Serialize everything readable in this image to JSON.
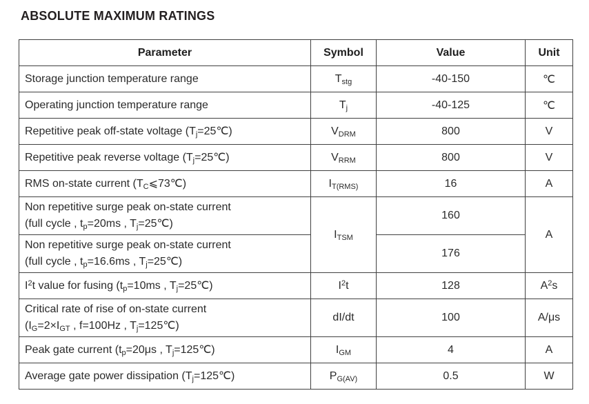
{
  "title": "ABSOLUTE MAXIMUM RATINGS",
  "table": {
    "headers": [
      "Parameter",
      "Symbol",
      "Value",
      "Unit"
    ],
    "rows": [
      {
        "parameter_lines": [
          "Storage junction temperature range"
        ],
        "symbol": "T_{stg}",
        "value": "-40-150",
        "unit": "℃"
      },
      {
        "parameter_lines": [
          "Operating junction temperature range"
        ],
        "symbol": "T_{j}",
        "value": "-40-125",
        "unit": "℃"
      },
      {
        "parameter_lines": [
          "Repetitive peak off-state voltage (T_{j}=25℃)"
        ],
        "symbol": "V_{DRM}",
        "value": "800",
        "unit": "V"
      },
      {
        "parameter_lines": [
          "Repetitive peak reverse voltage (T_{j}=25℃)"
        ],
        "symbol": "V_{RRM}",
        "value": "800",
        "unit": "V"
      },
      {
        "parameter_lines": [
          "RMS on-state current (T_{C}⩽73℃)"
        ],
        "symbol": "I_{T(RMS)}",
        "value": "16",
        "unit": "A"
      },
      {
        "parameter_lines": [
          "Non repetitive surge peak on-state current",
          "(full cycle , t_{p}=20ms , T_{j}=25℃)"
        ],
        "symbol": "I_{TSM}",
        "symbol_rowspan": 2,
        "value": "160",
        "unit": "A",
        "unit_rowspan": 2
      },
      {
        "parameter_lines": [
          "Non repetitive surge peak on-state current",
          "(full cycle , t_{p}=16.6ms , T_{j}=25℃)"
        ],
        "value": "176"
      },
      {
        "parameter_lines": [
          "I^{2}t value for fusing (t_{p}=10ms , T_{j}=25℃)"
        ],
        "symbol": "I^{2}t",
        "value": "128",
        "unit": "A^{2}s"
      },
      {
        "parameter_lines": [
          "Critical rate of rise of on-state current",
          "(I_{G}=2×I_{GT} , f=100Hz , T_{j}=125℃)"
        ],
        "symbol": "dI/dt",
        "value": "100",
        "unit": "A/μs"
      },
      {
        "parameter_lines": [
          "Peak gate current (t_{p}=20μs , T_{j}=125℃)"
        ],
        "symbol": "I_{GM}",
        "value": "4",
        "unit": "A"
      },
      {
        "parameter_lines": [
          "Average gate power dissipation (T_{j}=125℃)"
        ],
        "symbol": "P_{G(AV)}",
        "value": "0.5",
        "unit": "W"
      }
    ]
  }
}
